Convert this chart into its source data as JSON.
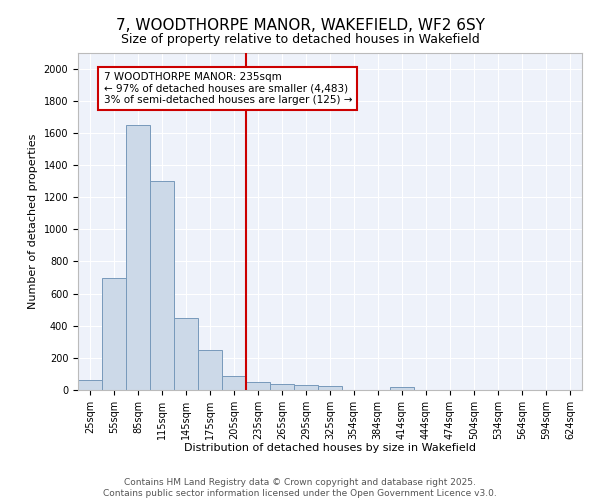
{
  "title": "7, WOODTHORPE MANOR, WAKEFIELD, WF2 6SY",
  "subtitle": "Size of property relative to detached houses in Wakefield",
  "xlabel": "Distribution of detached houses by size in Wakefield",
  "ylabel": "Number of detached properties",
  "bar_color": "#ccd9e8",
  "bar_edge_color": "#7799bb",
  "background_color": "#eef2fa",
  "grid_color": "#ffffff",
  "vline_color": "#cc0000",
  "annotation_text": "7 WOODTHORPE MANOR: 235sqm\n← 97% of detached houses are smaller (4,483)\n3% of semi-detached houses are larger (125) →",
  "annotation_box_color": "#cc0000",
  "categories": [
    "25sqm",
    "55sqm",
    "85sqm",
    "115sqm",
    "145sqm",
    "175sqm",
    "205sqm",
    "235sqm",
    "265sqm",
    "295sqm",
    "325sqm",
    "354sqm",
    "384sqm",
    "414sqm",
    "444sqm",
    "474sqm",
    "504sqm",
    "534sqm",
    "564sqm",
    "594sqm",
    "624sqm"
  ],
  "bin_starts": [
    25,
    55,
    85,
    115,
    145,
    175,
    205,
    235,
    265,
    295,
    325,
    354,
    384,
    414,
    444,
    474,
    504,
    534,
    564,
    594,
    624
  ],
  "bin_width": 30,
  "values": [
    60,
    700,
    1650,
    1300,
    450,
    250,
    90,
    50,
    40,
    30,
    25,
    0,
    0,
    20,
    0,
    0,
    0,
    0,
    0,
    0,
    0
  ],
  "ylim": [
    0,
    2100
  ],
  "yticks": [
    0,
    200,
    400,
    600,
    800,
    1000,
    1200,
    1400,
    1600,
    1800,
    2000
  ],
  "footer_text": "Contains HM Land Registry data © Crown copyright and database right 2025.\nContains public sector information licensed under the Open Government Licence v3.0.",
  "title_fontsize": 11,
  "subtitle_fontsize": 9,
  "axis_label_fontsize": 8,
  "tick_fontsize": 7,
  "annotation_fontsize": 7.5,
  "footer_fontsize": 6.5
}
